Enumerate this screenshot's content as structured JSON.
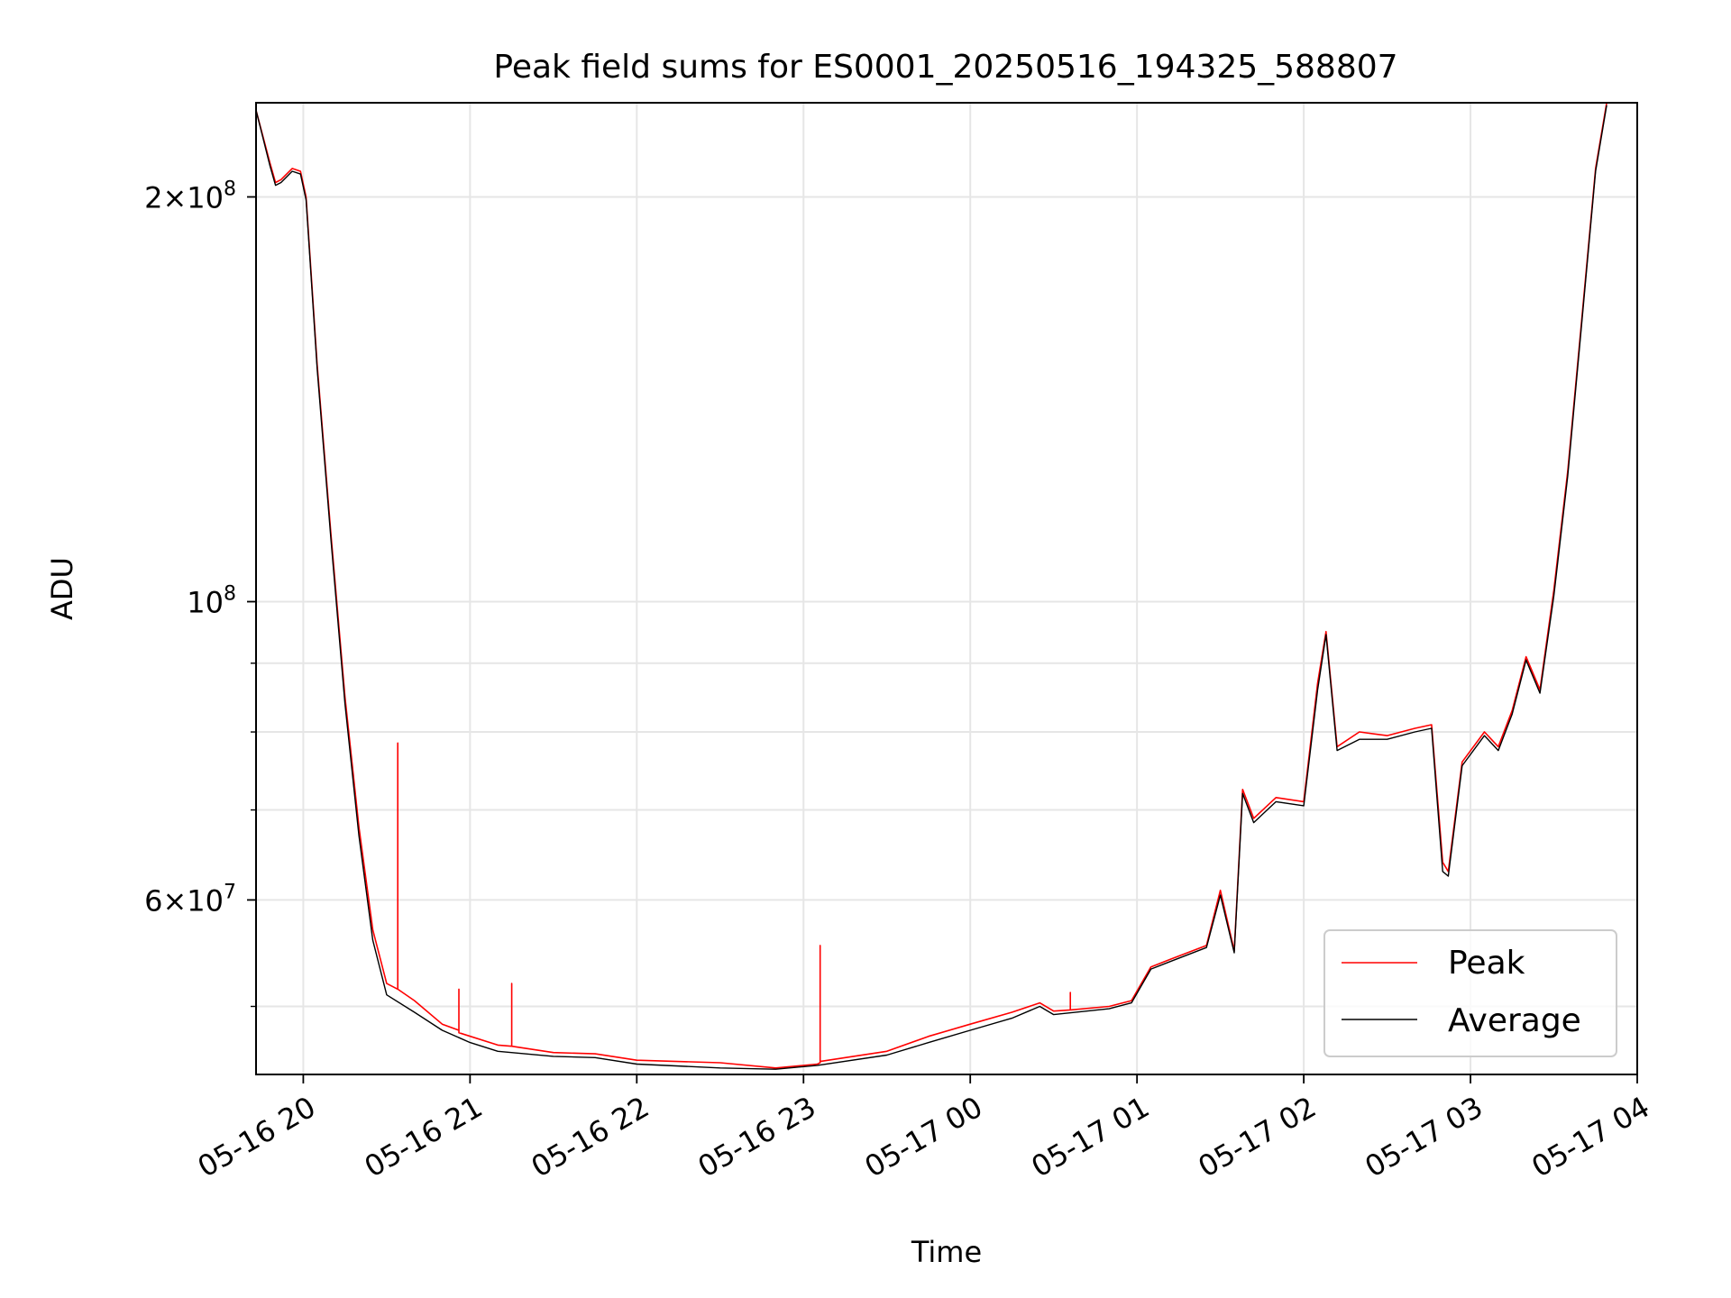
{
  "chart_data": {
    "type": "line",
    "title": "Peak field sums for ES0001_20250516_194325_588807",
    "xlabel": "Time",
    "ylabel": "ADU",
    "yscale": "log",
    "grid": true,
    "legend_position": "lower-right",
    "xlim": [
      "2025-05-16 19:43",
      "2025-05-17 04:00"
    ],
    "ylim": [
      44500000,
      235000000
    ],
    "x_ticks": [
      {
        "t": "2025-05-16 20:00",
        "label": "05-16 20"
      },
      {
        "t": "2025-05-16 21:00",
        "label": "05-16 21"
      },
      {
        "t": "2025-05-16 22:00",
        "label": "05-16 22"
      },
      {
        "t": "2025-05-16 23:00",
        "label": "05-16 23"
      },
      {
        "t": "2025-05-17 00:00",
        "label": "05-17 00"
      },
      {
        "t": "2025-05-17 01:00",
        "label": "05-17 01"
      },
      {
        "t": "2025-05-17 02:00",
        "label": "05-17 02"
      },
      {
        "t": "2025-05-17 03:00",
        "label": "05-17 03"
      },
      {
        "t": "2025-05-17 04:00",
        "label": "05-17 04"
      }
    ],
    "y_major_ticks": [
      {
        "v": 60000000,
        "mant": "6",
        "exp": "7"
      },
      {
        "v": 100000000,
        "mant": "",
        "exp": "8"
      },
      {
        "v": 200000000,
        "mant": "2",
        "exp": "8"
      }
    ],
    "y_minor_ticks": [
      50000000,
      70000000,
      80000000,
      90000000
    ],
    "series": [
      {
        "name": "Peak",
        "color": "#ff0000",
        "points": [
          [
            "2025-05-16 19:43",
            232000000
          ],
          [
            "2025-05-16 19:48",
            212000000
          ],
          [
            "2025-05-16 19:50",
            205000000
          ],
          [
            "2025-05-16 19:52",
            206000000
          ],
          [
            "2025-05-16 19:56",
            210000000
          ],
          [
            "2025-05-16 19:59",
            209000000
          ],
          [
            "2025-05-16 20:01",
            200000000
          ],
          [
            "2025-05-16 20:05",
            150000000
          ],
          [
            "2025-05-16 20:10",
            112000000
          ],
          [
            "2025-05-16 20:15",
            85000000
          ],
          [
            "2025-05-16 20:20",
            68000000
          ],
          [
            "2025-05-16 20:25",
            57000000
          ],
          [
            "2025-05-16 20:30",
            52000000
          ],
          [
            "2025-05-16 20:34",
            51500000
          ],
          [
            "2025-05-16 20:34",
            78500000
          ],
          [
            "2025-05-16 20:34",
            51500000
          ],
          [
            "2025-05-16 20:40",
            50500000
          ],
          [
            "2025-05-16 20:50",
            48500000
          ],
          [
            "2025-05-16 20:56",
            48000000
          ],
          [
            "2025-05-16 20:56",
            51500000
          ],
          [
            "2025-05-16 20:56",
            47800000
          ],
          [
            "2025-05-16 21:10",
            46800000
          ],
          [
            "2025-05-16 21:15",
            46700000
          ],
          [
            "2025-05-16 21:15",
            52000000
          ],
          [
            "2025-05-16 21:15",
            46700000
          ],
          [
            "2025-05-16 21:30",
            46200000
          ],
          [
            "2025-05-16 21:45",
            46100000
          ],
          [
            "2025-05-16 22:00",
            45600000
          ],
          [
            "2025-05-16 22:30",
            45400000
          ],
          [
            "2025-05-16 22:50",
            45000000
          ],
          [
            "2025-05-16 23:05",
            45300000
          ],
          [
            "2025-05-16 23:06",
            45400000
          ],
          [
            "2025-05-16 23:06",
            55500000
          ],
          [
            "2025-05-16 23:06",
            45500000
          ],
          [
            "2025-05-16 23:30",
            46300000
          ],
          [
            "2025-05-16 23:45",
            47500000
          ],
          [
            "2025-05-17 00:00",
            48500000
          ],
          [
            "2025-05-17 00:15",
            49500000
          ],
          [
            "2025-05-17 00:25",
            50300000
          ],
          [
            "2025-05-17 00:30",
            49600000
          ],
          [
            "2025-05-17 00:36",
            49700000
          ],
          [
            "2025-05-17 00:36",
            51200000
          ],
          [
            "2025-05-17 00:36",
            49700000
          ],
          [
            "2025-05-17 00:50",
            50000000
          ],
          [
            "2025-05-17 00:58",
            50500000
          ],
          [
            "2025-05-17 01:05",
            53500000
          ],
          [
            "2025-05-17 01:12",
            54200000
          ],
          [
            "2025-05-17 01:25",
            55500000
          ],
          [
            "2025-05-17 01:30",
            61000000
          ],
          [
            "2025-05-17 01:35",
            55000000
          ],
          [
            "2025-05-17 01:38",
            72500000
          ],
          [
            "2025-05-17 01:42",
            69000000
          ],
          [
            "2025-05-17 01:50",
            71500000
          ],
          [
            "2025-05-17 02:00",
            71000000
          ],
          [
            "2025-05-17 02:05",
            87000000
          ],
          [
            "2025-05-17 02:08",
            95000000
          ],
          [
            "2025-05-17 02:12",
            78000000
          ],
          [
            "2025-05-17 02:20",
            80000000
          ],
          [
            "2025-05-17 02:30",
            79500000
          ],
          [
            "2025-05-17 02:40",
            80500000
          ],
          [
            "2025-05-17 02:46",
            81000000
          ],
          [
            "2025-05-17 02:50",
            64000000
          ],
          [
            "2025-05-17 02:52",
            63000000
          ],
          [
            "2025-05-17 02:57",
            76000000
          ],
          [
            "2025-05-17 03:05",
            80000000
          ],
          [
            "2025-05-17 03:10",
            78000000
          ],
          [
            "2025-05-17 03:15",
            83000000
          ],
          [
            "2025-05-17 03:20",
            91000000
          ],
          [
            "2025-05-17 03:25",
            86000000
          ],
          [
            "2025-05-17 03:30",
            102000000
          ],
          [
            "2025-05-17 03:35",
            125000000
          ],
          [
            "2025-05-17 03:40",
            162000000
          ],
          [
            "2025-05-17 03:45",
            210000000
          ],
          [
            "2025-05-17 03:49",
            235000000
          ]
        ]
      },
      {
        "name": "Average",
        "color": "#000000",
        "points": [
          [
            "2025-05-16 19:43",
            232000000
          ],
          [
            "2025-05-16 19:48",
            211000000
          ],
          [
            "2025-05-16 19:50",
            204000000
          ],
          [
            "2025-05-16 19:52",
            205000000
          ],
          [
            "2025-05-16 19:56",
            209000000
          ],
          [
            "2025-05-16 19:59",
            208000000
          ],
          [
            "2025-05-16 20:01",
            199000000
          ],
          [
            "2025-05-16 20:05",
            149000000
          ],
          [
            "2025-05-16 20:10",
            111000000
          ],
          [
            "2025-05-16 20:15",
            84000000
          ],
          [
            "2025-05-16 20:20",
            67000000
          ],
          [
            "2025-05-16 20:25",
            56000000
          ],
          [
            "2025-05-16 20:30",
            51000000
          ],
          [
            "2025-05-16 20:40",
            49500000
          ],
          [
            "2025-05-16 20:50",
            48000000
          ],
          [
            "2025-05-16 21:00",
            47000000
          ],
          [
            "2025-05-16 21:10",
            46300000
          ],
          [
            "2025-05-16 21:30",
            45900000
          ],
          [
            "2025-05-16 21:45",
            45800000
          ],
          [
            "2025-05-16 22:00",
            45300000
          ],
          [
            "2025-05-16 22:30",
            45000000
          ],
          [
            "2025-05-16 22:50",
            44900000
          ],
          [
            "2025-05-16 23:05",
            45200000
          ],
          [
            "2025-05-16 23:30",
            46000000
          ],
          [
            "2025-05-16 23:45",
            47000000
          ],
          [
            "2025-05-17 00:00",
            48000000
          ],
          [
            "2025-05-17 00:15",
            49000000
          ],
          [
            "2025-05-17 00:25",
            50000000
          ],
          [
            "2025-05-17 00:30",
            49300000
          ],
          [
            "2025-05-17 00:50",
            49800000
          ],
          [
            "2025-05-17 00:58",
            50300000
          ],
          [
            "2025-05-17 01:05",
            53300000
          ],
          [
            "2025-05-17 01:12",
            54000000
          ],
          [
            "2025-05-17 01:25",
            55300000
          ],
          [
            "2025-05-17 01:30",
            60500000
          ],
          [
            "2025-05-17 01:35",
            54800000
          ],
          [
            "2025-05-17 01:38",
            72000000
          ],
          [
            "2025-05-17 01:42",
            68500000
          ],
          [
            "2025-05-17 01:50",
            71000000
          ],
          [
            "2025-05-17 02:00",
            70500000
          ],
          [
            "2025-05-17 02:05",
            86000000
          ],
          [
            "2025-05-17 02:08",
            94500000
          ],
          [
            "2025-05-17 02:12",
            77500000
          ],
          [
            "2025-05-17 02:20",
            79000000
          ],
          [
            "2025-05-17 02:30",
            79000000
          ],
          [
            "2025-05-17 02:40",
            80000000
          ],
          [
            "2025-05-17 02:46",
            80500000
          ],
          [
            "2025-05-17 02:50",
            63000000
          ],
          [
            "2025-05-17 02:52",
            62500000
          ],
          [
            "2025-05-17 02:57",
            75500000
          ],
          [
            "2025-05-17 03:05",
            79500000
          ],
          [
            "2025-05-17 03:10",
            77500000
          ],
          [
            "2025-05-17 03:15",
            82500000
          ],
          [
            "2025-05-17 03:20",
            90500000
          ],
          [
            "2025-05-17 03:25",
            85500000
          ],
          [
            "2025-05-17 03:30",
            101000000
          ],
          [
            "2025-05-17 03:35",
            124000000
          ],
          [
            "2025-05-17 03:40",
            161000000
          ],
          [
            "2025-05-17 03:45",
            209000000
          ],
          [
            "2025-05-17 03:49",
            234000000
          ]
        ]
      }
    ]
  }
}
